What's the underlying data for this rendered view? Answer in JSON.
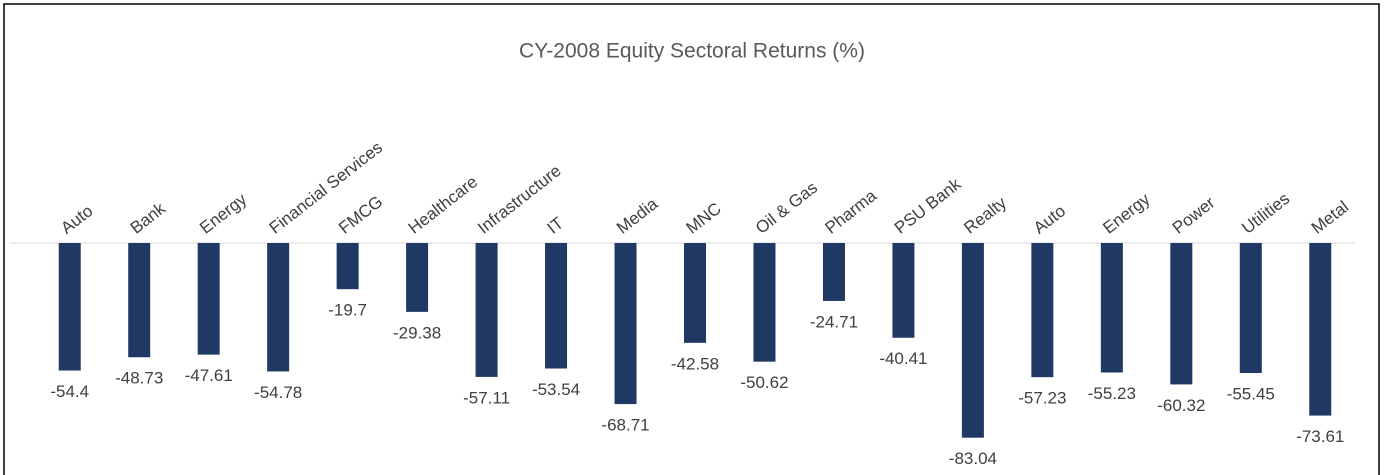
{
  "chart_data": {
    "type": "bar",
    "title": "CY-2008 Equity Sectoral Returns (%)",
    "categories": [
      "Auto",
      "Bank",
      "Energy",
      "Financial Services",
      "FMCG",
      "Healthcare",
      "Infrastructure",
      "IT",
      "Media",
      "MNC",
      "Oil & Gas",
      "Pharma",
      "PSU Bank",
      "Realty",
      "Auto",
      "Energy",
      "Power",
      "Utilities",
      "Metal"
    ],
    "values": [
      -54.4,
      -48.73,
      -47.61,
      -54.78,
      -19.7,
      -29.38,
      -57.11,
      -53.54,
      -68.71,
      -42.58,
      -50.62,
      -24.71,
      -40.41,
      -83.04,
      -57.23,
      -55.23,
      -60.32,
      -55.45,
      -73.61
    ],
    "color": "#1f3864",
    "ylim": [
      -90,
      0
    ]
  }
}
